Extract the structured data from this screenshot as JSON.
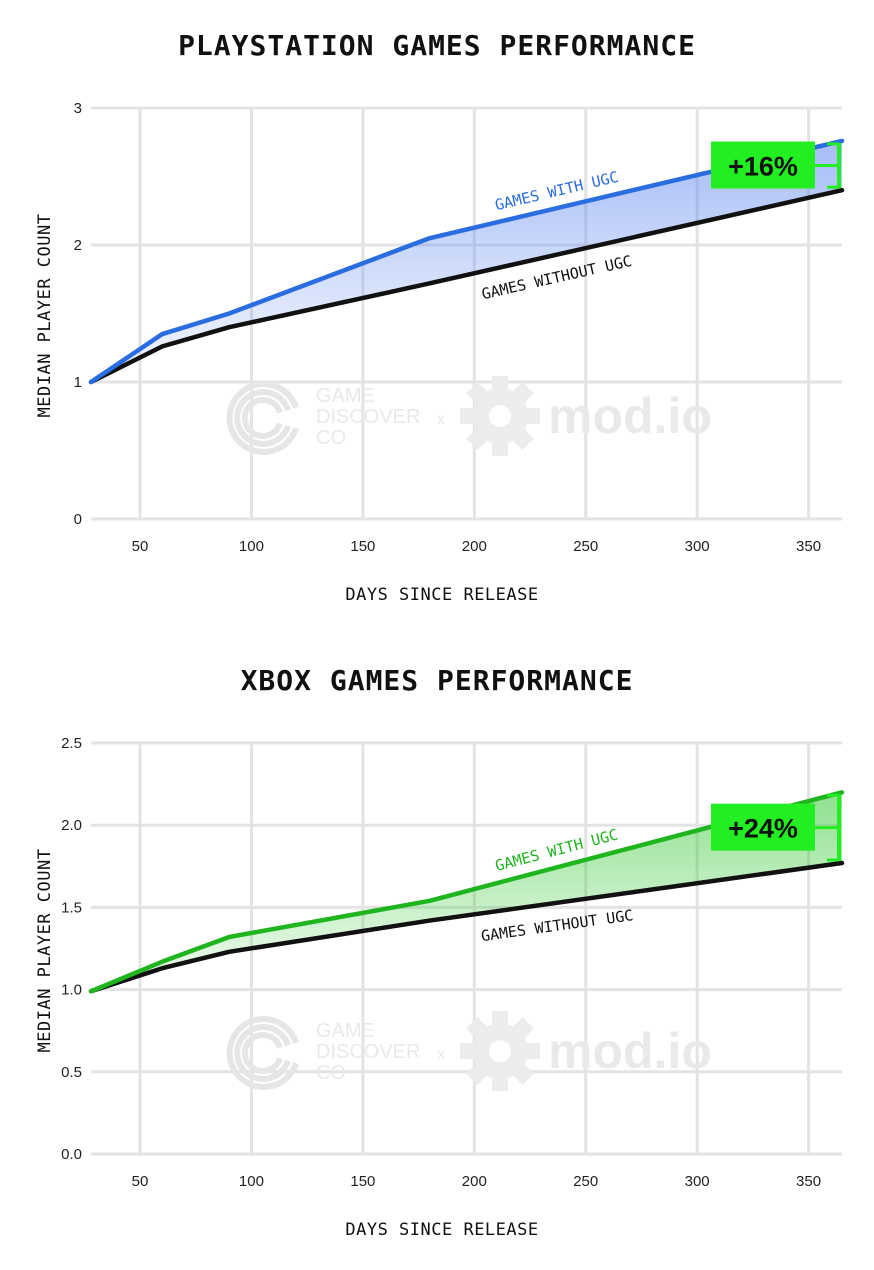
{
  "chart_data": [
    {
      "type": "area",
      "title": "PLAYSTATION GAMES PERFORMANCE",
      "xlabel": "DAYS SINCE RELEASE",
      "ylabel": "MEDIAN PLAYER COUNT",
      "xlim": [
        28,
        365
      ],
      "ylim": [
        0,
        3
      ],
      "xticks": [
        50,
        100,
        150,
        200,
        250,
        300,
        350
      ],
      "yticks": [
        0,
        1,
        2,
        3
      ],
      "ytick_labels": [
        "0",
        "1",
        "2",
        "3"
      ],
      "grid": true,
      "series": [
        {
          "name": "GAMES WITH UGC",
          "color": "#2a6de0",
          "x": [
            28,
            60,
            90,
            180,
            365
          ],
          "y": [
            1.0,
            1.35,
            1.5,
            2.05,
            2.76
          ]
        },
        {
          "name": "GAMES WITHOUT UGC",
          "color": "#111111",
          "x": [
            28,
            60,
            90,
            180,
            365
          ],
          "y": [
            1.0,
            1.26,
            1.4,
            1.72,
            2.4
          ]
        }
      ],
      "fill_color": "#5b86f0",
      "annotation": {
        "text": "+16%",
        "color": "#22ee22"
      },
      "watermark": {
        "left": [
          "GAME",
          "DISCOVER",
          "CO"
        ],
        "sep": "x",
        "right": "mod.io"
      }
    },
    {
      "type": "area",
      "title": "XBOX GAMES PERFORMANCE",
      "xlabel": "DAYS SINCE RELEASE",
      "ylabel": "MEDIAN PLAYER COUNT",
      "xlim": [
        28,
        365
      ],
      "ylim": [
        0,
        2.5
      ],
      "xticks": [
        50,
        100,
        150,
        200,
        250,
        300,
        350
      ],
      "yticks": [
        0,
        0.5,
        1.0,
        1.5,
        2.0,
        2.5
      ],
      "ytick_labels": [
        "0.0",
        "0.5",
        "1.0",
        "1.5",
        "2.0",
        "2.5"
      ],
      "grid": true,
      "series": [
        {
          "name": "GAMES WITH UGC",
          "color": "#1fb51f",
          "x": [
            28,
            60,
            90,
            180,
            365
          ],
          "y": [
            0.99,
            1.17,
            1.32,
            1.54,
            2.2
          ]
        },
        {
          "name": "GAMES WITHOUT UGC",
          "color": "#111111",
          "x": [
            28,
            60,
            90,
            180,
            365
          ],
          "y": [
            0.99,
            1.13,
            1.23,
            1.42,
            1.77
          ]
        }
      ],
      "fill_color": "#32c832",
      "annotation": {
        "text": "+24%",
        "color": "#22ee22"
      },
      "watermark": {
        "left": [
          "GAME",
          "DISCOVER",
          "CO"
        ],
        "sep": "x",
        "right": "mod.io"
      }
    }
  ]
}
